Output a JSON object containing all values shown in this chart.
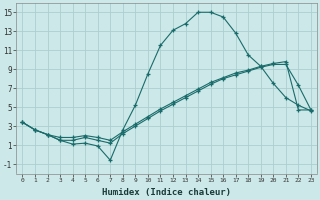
{
  "xlabel": "Humidex (Indice chaleur)",
  "background_color": "#cce8e8",
  "grid_color": "#aacfcf",
  "line_color": "#1a6b6b",
  "xlim": [
    -0.5,
    23.5
  ],
  "ylim": [
    -2,
    16
  ],
  "xticks": [
    0,
    1,
    2,
    3,
    4,
    5,
    6,
    7,
    8,
    9,
    10,
    11,
    12,
    13,
    14,
    15,
    16,
    17,
    18,
    19,
    20,
    21,
    22,
    23
  ],
  "yticks": [
    -1,
    1,
    3,
    5,
    7,
    9,
    11,
    13,
    15
  ],
  "series1_x": [
    0,
    1,
    2,
    3,
    4,
    5,
    6,
    7,
    8,
    9,
    10,
    11,
    12,
    13,
    14,
    15,
    16,
    17,
    18,
    19,
    20,
    21,
    22,
    23
  ],
  "series1_y": [
    3.4,
    2.6,
    2.1,
    1.5,
    1.1,
    1.2,
    0.9,
    -0.6,
    2.6,
    5.2,
    8.5,
    11.5,
    13.1,
    13.8,
    15.0,
    15.0,
    14.5,
    12.8,
    10.5,
    9.3,
    7.5,
    6.0,
    5.2,
    4.6
  ],
  "series2_x": [
    0,
    1,
    2,
    3,
    4,
    5,
    6,
    7,
    8,
    9,
    10,
    11,
    12,
    13,
    14,
    15,
    16,
    17,
    18,
    19,
    20,
    21,
    22,
    23
  ],
  "series2_y": [
    3.4,
    2.6,
    2.1,
    1.5,
    1.5,
    1.8,
    1.5,
    1.2,
    2.2,
    3.0,
    3.8,
    4.6,
    5.3,
    6.0,
    6.7,
    7.4,
    8.0,
    8.4,
    8.8,
    9.2,
    9.5,
    9.5,
    7.3,
    4.7
  ],
  "series3_x": [
    0,
    1,
    2,
    3,
    4,
    5,
    6,
    7,
    8,
    9,
    10,
    11,
    12,
    13,
    14,
    15,
    16,
    17,
    18,
    19,
    20,
    21,
    22,
    23
  ],
  "series3_y": [
    3.4,
    2.6,
    2.1,
    1.8,
    1.8,
    2.0,
    1.8,
    1.5,
    2.4,
    3.2,
    4.0,
    4.8,
    5.5,
    6.2,
    6.9,
    7.6,
    8.1,
    8.6,
    8.9,
    9.3,
    9.6,
    9.8,
    4.7,
    4.7
  ]
}
